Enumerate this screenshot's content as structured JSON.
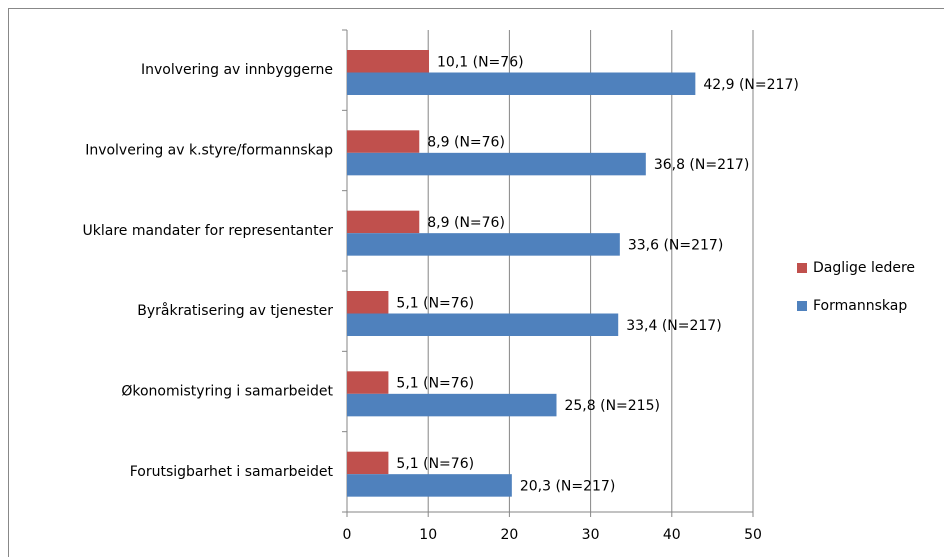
{
  "chart_data": {
    "type": "bar",
    "orientation": "horizontal",
    "categories": [
      "Involvering av innbyggerne",
      "Involvering av k.styre/formannskap",
      "Uklare mandater for representanter",
      "Byråkratisering av tjenester",
      "Økonomistyring i samarbeidet",
      "Forutsigbarhet i samarbeidet"
    ],
    "series": [
      {
        "name": "Daglige ledere",
        "color": "#c0504d",
        "values": [
          10.1,
          8.9,
          8.9,
          5.1,
          5.1,
          5.1
        ],
        "value_labels": [
          "10,1 (N=76)",
          "8,9 (N=76)",
          "8,9 (N=76)",
          "5,1 (N=76)",
          "5,1 (N=76)",
          "5,1 (N=76)"
        ]
      },
      {
        "name": "Formannskap",
        "color": "#4f81bd",
        "values": [
          42.9,
          36.8,
          33.6,
          33.4,
          25.8,
          20.3
        ],
        "value_labels": [
          "42,9 (N=217)",
          "36,8 (N=217)",
          "33,6 (N=217)",
          "33,4 (N=217)",
          "25,8 (N=215)",
          "20,3 (N=217)"
        ]
      }
    ],
    "xlim": [
      0,
      50
    ],
    "xticks": [
      0,
      10,
      20,
      30,
      40,
      50
    ],
    "grid": true,
    "legend": "right"
  }
}
